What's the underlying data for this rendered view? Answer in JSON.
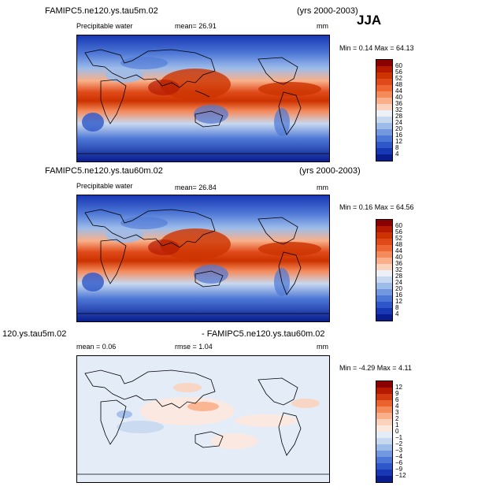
{
  "season": "JJA",
  "panels": [
    {
      "case": "FAMIPC5.ne120.ys.tau5m.02",
      "years": "(yrs 2000-2003)",
      "variable": "Precipitable water",
      "mean_text": "mean=   26.91",
      "units": "mm",
      "minmax_text": "Min =   0.14  Max =   64.13",
      "colorbar_labels": [
        "60",
        "56",
        "52",
        "48",
        "44",
        "40",
        "36",
        "32",
        "28",
        "24",
        "20",
        "16",
        "12",
        "8",
        "4"
      ]
    },
    {
      "case": "FAMIPC5.ne120.ys.tau60m.02",
      "years": "(yrs 2000-2003)",
      "variable": "Precipitable water",
      "mean_text": "mean=   26.84",
      "units": "mm",
      "minmax_text": "Min =   0.16  Max =   64.56",
      "colorbar_labels": [
        "60",
        "56",
        "52",
        "48",
        "44",
        "40",
        "36",
        "32",
        "28",
        "24",
        "20",
        "16",
        "12",
        "8",
        "4"
      ]
    },
    {
      "case_left": "120.ys.tau5m.02",
      "case_right": "- FAMIPC5.ne120.ys.tau60m.02",
      "mean_text": "mean =    0.06",
      "rmse_text": "rmse =    1.04",
      "units": "mm",
      "minmax_text": "Min =  -4.29  Max =    4.11",
      "colorbar_labels": [
        "12",
        "9",
        "6",
        "4",
        "3",
        "2",
        "1",
        "0",
        "−1",
        "−2",
        "−3",
        "−4",
        "−6",
        "−9",
        "−12"
      ]
    }
  ],
  "palettes": {
    "abs": [
      "#8b0000",
      "#b51a00",
      "#cc3300",
      "#e04a1a",
      "#ee6633",
      "#f58a5a",
      "#f9b08a",
      "#fbd3bd",
      "#eef0f7",
      "#c7d8f0",
      "#9dbcea",
      "#7299e0",
      "#4d77d6",
      "#2e57c9",
      "#1837b4",
      "#0a1d8f"
    ],
    "diff": [
      "#8b0000",
      "#b51a00",
      "#d43a10",
      "#ea6230",
      "#f58a5a",
      "#f9b08a",
      "#fbd3bd",
      "#fde8de",
      "#e4ecf8",
      "#c7d8f0",
      "#9dbcea",
      "#7299e0",
      "#4d77d6",
      "#2e57c9",
      "#1837b4",
      "#0a1d8f"
    ]
  }
}
